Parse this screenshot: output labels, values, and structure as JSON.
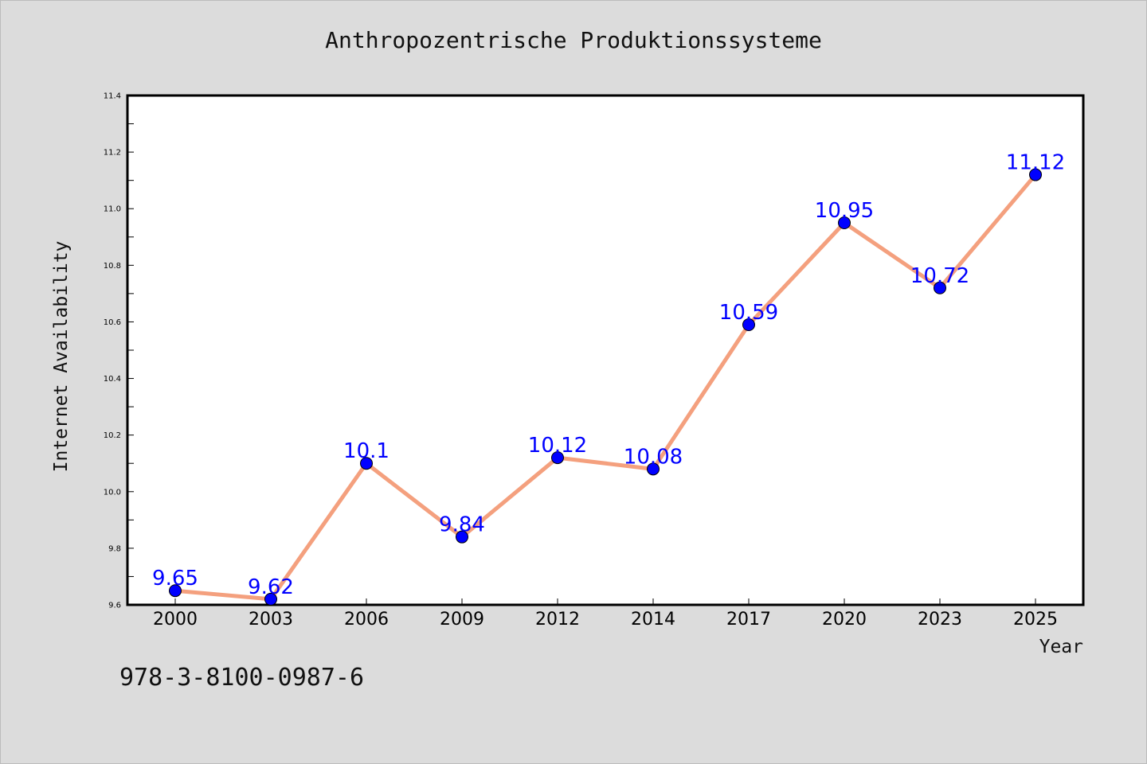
{
  "chart_data": {
    "type": "line",
    "title": "Anthropozentrische Produktionssysteme",
    "xlabel": "Year",
    "ylabel": "Internet Availability",
    "categories": [
      "2000",
      "2003",
      "2006",
      "2009",
      "2012",
      "2014",
      "2017",
      "2020",
      "2023",
      "2025"
    ],
    "series": [
      {
        "values": [
          9.65,
          9.62,
          10.1,
          9.84,
          10.12,
          10.08,
          10.59,
          10.95,
          10.72,
          11.12
        ],
        "data_labels": [
          "9.65",
          "9.62",
          "10.1",
          "9.84",
          "10.12",
          "10.08",
          "10.59",
          "10.95",
          "10.72",
          "11.12"
        ]
      }
    ],
    "ylim": [
      9.6,
      11.4
    ],
    "yticks": [
      "9.6",
      "9.8",
      "10.0",
      "10.2",
      "10.4",
      "10.6",
      "10.8",
      "11.0",
      "11.2",
      "11.4"
    ],
    "line_color": "#f4a07e",
    "marker_color": "#0000ff",
    "label_color": "#0000ff",
    "background_color": "#dcdcdc",
    "plot_background": "#ffffff",
    "grid": false,
    "legend": false
  },
  "annotation": {
    "isbn": "978-3-8100-0987-6"
  }
}
